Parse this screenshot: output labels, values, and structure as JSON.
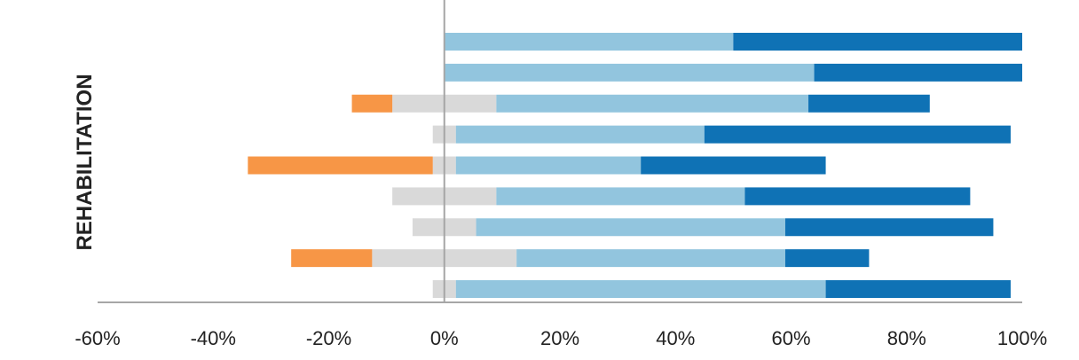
{
  "chart_data": {
    "type": "bar",
    "orientation": "horizontal",
    "stacked": true,
    "diverging": true,
    "title": "",
    "xlabel": "",
    "ylabel": "REHABILITATION",
    "xlim": [
      -60,
      100
    ],
    "x_ticks": [
      -60,
      -40,
      -20,
      0,
      20,
      40,
      60,
      80,
      100
    ],
    "x_tick_labels": [
      "-60%",
      "-40%",
      "-20%",
      "0%",
      "20%",
      "40%",
      "60%",
      "80%",
      "100%"
    ],
    "grid": false,
    "legend": "none",
    "rows": 9,
    "negative_series": [
      {
        "color": "#f79646",
        "values": [
          0,
          0,
          7,
          0,
          32,
          0,
          0,
          14,
          0
        ]
      },
      {
        "color": "#d9d9d9",
        "values": [
          0,
          0,
          9,
          2,
          2,
          9,
          5.5,
          12.5,
          2
        ]
      }
    ],
    "positive_series": [
      {
        "color": "#d9d9d9",
        "values": [
          0,
          0,
          9,
          2,
          2,
          9,
          5.5,
          12.5,
          2
        ]
      },
      {
        "color": "#92c5de",
        "values": [
          50,
          64,
          54,
          43,
          32,
          43,
          53.5,
          46.5,
          64
        ]
      },
      {
        "color": "#0f72b5",
        "values": [
          50,
          36,
          21,
          53,
          32,
          39,
          36,
          14.5,
          32
        ]
      }
    ],
    "colors": {
      "axis": "#a6a6a6",
      "zero_line": "#a6a6a6",
      "text": "#222222"
    }
  }
}
